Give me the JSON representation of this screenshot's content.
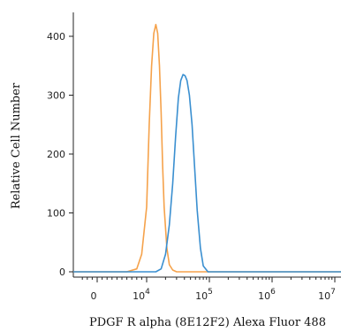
{
  "chart_data": {
    "type": "area",
    "xlabel": "PDGF R alpha (8E12F2) Alexa Fluor 488",
    "ylabel": "Relative Cell Number",
    "x_scale": "biexponential",
    "ylim": [
      0,
      440
    ],
    "y_ticks": [
      "0",
      "100",
      "200",
      "300",
      "400"
    ],
    "x_ticks": [
      {
        "base": "0",
        "exp": ""
      },
      {
        "base": "10",
        "exp": "4"
      },
      {
        "base": "10",
        "exp": "5"
      },
      {
        "base": "10",
        "exp": "6"
      },
      {
        "base": "10",
        "exp": "7"
      }
    ],
    "grid": false,
    "series": [
      {
        "color": "#f5a24b",
        "x": [
          6000,
          8000,
          9000,
          10000,
          11000,
          12000,
          13000,
          14000,
          15000,
          16000,
          17000,
          18000,
          19000,
          21000,
          23000,
          26000,
          30000
        ],
        "y": [
          0,
          5,
          30,
          110,
          250,
          350,
          405,
          420,
          405,
          350,
          270,
          180,
          110,
          40,
          12,
          3,
          0
        ]
      },
      {
        "color": "#3a8fd0",
        "x": [
          14000,
          17000,
          20000,
          23000,
          26000,
          29000,
          32000,
          35000,
          38000,
          41000,
          44000,
          48000,
          53000,
          58000,
          64000,
          72000,
          80000,
          95000
        ],
        "y": [
          0,
          5,
          30,
          80,
          150,
          230,
          295,
          325,
          335,
          333,
          325,
          300,
          250,
          180,
          105,
          40,
          10,
          0
        ]
      }
    ]
  }
}
